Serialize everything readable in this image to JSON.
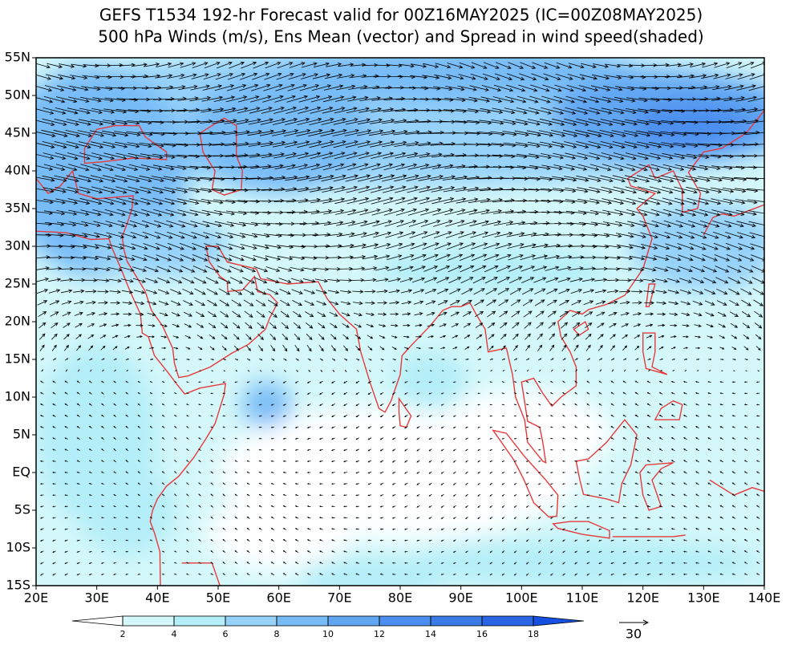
{
  "header": {
    "title_lines": [
      "GEFS T1534 192-hr Forecast valid for 00Z16MAY2025 (IC=00Z08MAY2025)",
      "500 hPa Winds (m/s), Ens Mean (vector) and Spread in wind speed(shaded)"
    ]
  },
  "map": {
    "lat_labels": [
      "55N",
      "50N",
      "45N",
      "40N",
      "35N",
      "30N",
      "25N",
      "20N",
      "15N",
      "10N",
      "5N",
      "EQ",
      "5S",
      "10S",
      "15S"
    ],
    "lon_labels": [
      "20E",
      "30E",
      "40E",
      "50E",
      "60E",
      "70E",
      "80E",
      "90E",
      "100E",
      "110E",
      "120E",
      "130E",
      "140E"
    ]
  },
  "colorbar": {
    "levels": [
      2,
      4,
      6,
      8,
      10,
      12,
      14,
      16,
      18
    ],
    "colors": [
      "#ffffff",
      "#d4f8fa",
      "#b4eef8",
      "#96d2fa",
      "#78bcf7",
      "#60a6f3",
      "#4b8ef0",
      "#3a7be6",
      "#2a66e4",
      "#1650e0"
    ]
  },
  "reference_vector": {
    "label": "30"
  }
}
